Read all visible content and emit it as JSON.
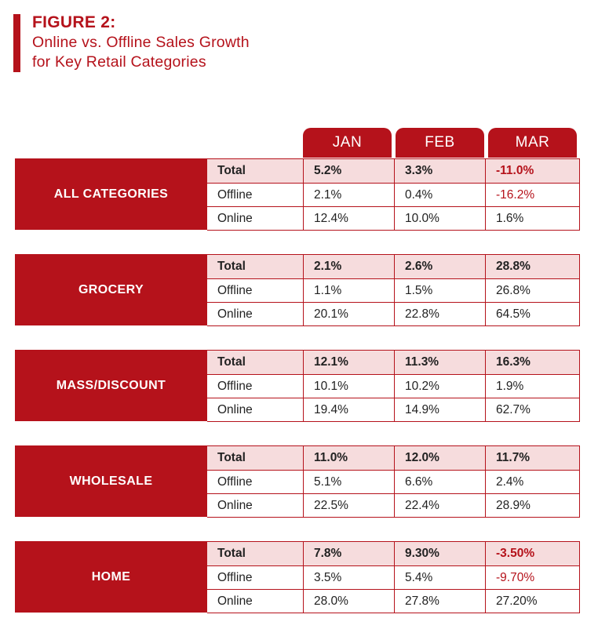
{
  "header": {
    "figure_label": "FIGURE 2:",
    "subtitle_line1": "Online vs. Offline Sales Growth",
    "subtitle_line2": "for Key Retail Categories"
  },
  "colors": {
    "accent": "#b5121b",
    "total_row_bg": "#f6dcdd",
    "negative": "#b5121b"
  },
  "chart_data": {
    "type": "table",
    "title": "FIGURE 2: Online vs. Offline Sales Growth for Key Retail Categories",
    "columns": [
      "JAN",
      "FEB",
      "MAR"
    ],
    "row_labels": [
      "Total",
      "Offline",
      "Online"
    ],
    "sections": [
      {
        "category": "ALL CATEGORIES",
        "rows": [
          [
            "5.2%",
            "3.3%",
            "-11.0%"
          ],
          [
            "2.1%",
            "0.4%",
            "-16.2%"
          ],
          [
            "12.4%",
            "10.0%",
            "1.6%"
          ]
        ]
      },
      {
        "category": "GROCERY",
        "rows": [
          [
            "2.1%",
            "2.6%",
            "28.8%"
          ],
          [
            "1.1%",
            "1.5%",
            "26.8%"
          ],
          [
            "20.1%",
            "22.8%",
            "64.5%"
          ]
        ]
      },
      {
        "category": "MASS/DISCOUNT",
        "rows": [
          [
            "12.1%",
            "11.3%",
            "16.3%"
          ],
          [
            "10.1%",
            "10.2%",
            "1.9%"
          ],
          [
            "19.4%",
            "14.9%",
            "62.7%"
          ]
        ]
      },
      {
        "category": "WHOLESALE",
        "rows": [
          [
            "11.0%",
            "12.0%",
            "11.7%"
          ],
          [
            "5.1%",
            "6.6%",
            "2.4%"
          ],
          [
            "22.5%",
            "22.4%",
            "28.9%"
          ]
        ]
      },
      {
        "category": "HOME",
        "rows": [
          [
            "7.8%",
            "9.30%",
            "-3.50%"
          ],
          [
            "3.5%",
            "5.4%",
            "-9.70%"
          ],
          [
            "28.0%",
            "27.8%",
            "27.20%"
          ]
        ]
      }
    ]
  }
}
